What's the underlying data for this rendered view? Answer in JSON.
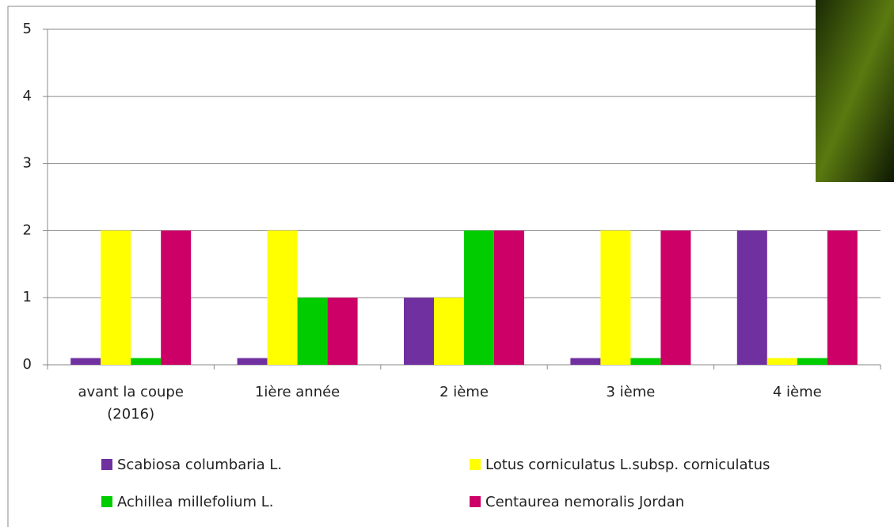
{
  "chart_data": {
    "type": "bar",
    "categories": [
      "avant la coupe (2016)",
      "1ière année",
      "2 ième",
      "3 ième",
      "4 ième"
    ],
    "series": [
      {
        "name": "Scabiosa columbaria L.",
        "color": "#7030a0",
        "values": [
          0.1,
          0.1,
          1,
          0.1,
          2
        ]
      },
      {
        "name": "Lotus corniculatus L.subsp. corniculatus",
        "color": "#ffff00",
        "values": [
          2,
          2,
          1,
          2,
          0.1
        ]
      },
      {
        "name": "Achillea millefolium L.",
        "color": "#00cc00",
        "values": [
          0.1,
          1,
          2,
          0.1,
          0.1
        ]
      },
      {
        "name": "Centaurea nemoralis Jordan",
        "color": "#cc0066",
        "values": [
          2,
          1,
          2,
          2,
          2
        ]
      }
    ],
    "ylim": [
      0,
      5
    ],
    "yticks": [
      0,
      1,
      2,
      3,
      4,
      5
    ],
    "grid": true
  }
}
